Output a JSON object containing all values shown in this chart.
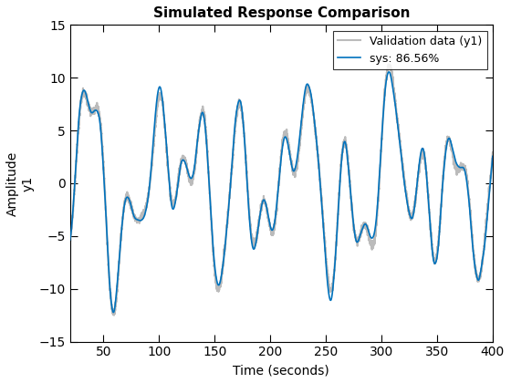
{
  "title": "Simulated Response Comparison",
  "xlabel": "Time (seconds)",
  "ylabel_outer": "Amplitude",
  "ylabel_inner": "y1",
  "xlim": [
    20,
    400
  ],
  "ylim": [
    -15,
    15
  ],
  "xticks": [
    50,
    100,
    150,
    200,
    250,
    300,
    350,
    400
  ],
  "yticks": [
    -15,
    -10,
    -5,
    0,
    5,
    10,
    15
  ],
  "legend_labels": [
    "Validation data (y1)",
    "sys: 86.56%"
  ],
  "validation_color": "#bbbbbb",
  "sys_color": "#0072bd",
  "validation_lw": 1.5,
  "sys_lw": 1.2,
  "legend_loc": "upper right",
  "title_fontsize": 11,
  "label_fontsize": 10,
  "tick_fontsize": 10,
  "seed": 7
}
